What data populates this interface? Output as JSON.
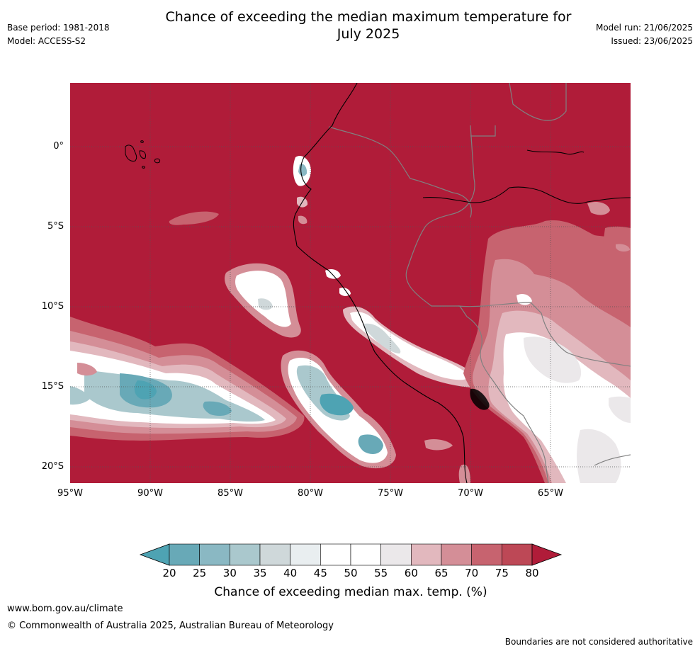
{
  "title_line1": "Chance of exceeding the median maximum temperature for",
  "title_line2": "July 2025",
  "base_period": "Base period: 1981-2018",
  "model": "Model: ACCESS-S2",
  "model_run": "Model run: 21/06/2025",
  "issued": "Issued: 23/06/2025",
  "lat_ticks": [
    "0°",
    "5°S",
    "10°S",
    "15°S",
    "20°S"
  ],
  "lon_ticks": [
    "95°W",
    "90°W",
    "85°W",
    "80°W",
    "75°W",
    "70°W",
    "65°W"
  ],
  "colorbar": {
    "label": "Chance of exceeding median max. temp. (%)",
    "ticks": [
      "20",
      "25",
      "30",
      "35",
      "40",
      "45",
      "50",
      "55",
      "60",
      "65",
      "70",
      "75",
      "80"
    ],
    "colors": [
      "#4ea3b3",
      "#68a9b7",
      "#8ab8c3",
      "#aac8cd",
      "#cfd8da",
      "#e9eef0",
      "#ffffff",
      "#ffffff",
      "#ebe8ea",
      "#e2b8be",
      "#d48e97",
      "#c7636f",
      "#bd4856",
      "#b01c39"
    ]
  },
  "footer_url": "www.bom.gov.au/climate",
  "copyright": "© Commonwealth of Australia 2025, Australian Bureau of Meteorology",
  "disclaimer": "Boundaries are not considered authoritative",
  "map_colors": {
    "background": "#b01c39",
    "coast": "#000000",
    "border": "#808080",
    "grid": "#555555"
  }
}
